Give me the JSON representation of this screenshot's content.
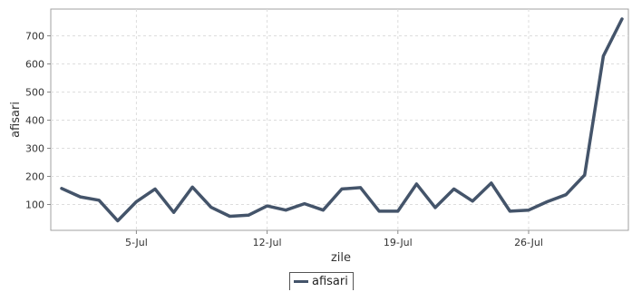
{
  "chart_data": {
    "type": "line",
    "xlabel": "zile",
    "ylabel": "afisari",
    "x": [
      "1-Jul",
      "2-Jul",
      "3-Jul",
      "4-Jul",
      "5-Jul",
      "6-Jul",
      "7-Jul",
      "8-Jul",
      "9-Jul",
      "10-Jul",
      "11-Jul",
      "12-Jul",
      "13-Jul",
      "14-Jul",
      "15-Jul",
      "16-Jul",
      "17-Jul",
      "18-Jul",
      "19-Jul",
      "20-Jul",
      "21-Jul",
      "22-Jul",
      "23-Jul",
      "24-Jul",
      "25-Jul",
      "26-Jul",
      "27-Jul",
      "28-Jul",
      "29-Jul",
      "30-Jul",
      "31-Jul"
    ],
    "x_ticks": [
      "5-Jul",
      "12-Jul",
      "19-Jul",
      "26-Jul"
    ],
    "y_ticks": [
      100,
      200,
      300,
      400,
      500,
      600,
      700
    ],
    "ylim": [
      10,
      800
    ],
    "grid": true,
    "legend_position": "bottom",
    "series": [
      {
        "name": "afisari",
        "color": "#44546a",
        "values": [
          157,
          127,
          115,
          42,
          110,
          155,
          72,
          162,
          90,
          58,
          62,
          95,
          80,
          103,
          80,
          155,
          160,
          76,
          76,
          173,
          89,
          155,
          112,
          176,
          76,
          80,
          110,
          135,
          205,
          628,
          760
        ]
      }
    ]
  }
}
